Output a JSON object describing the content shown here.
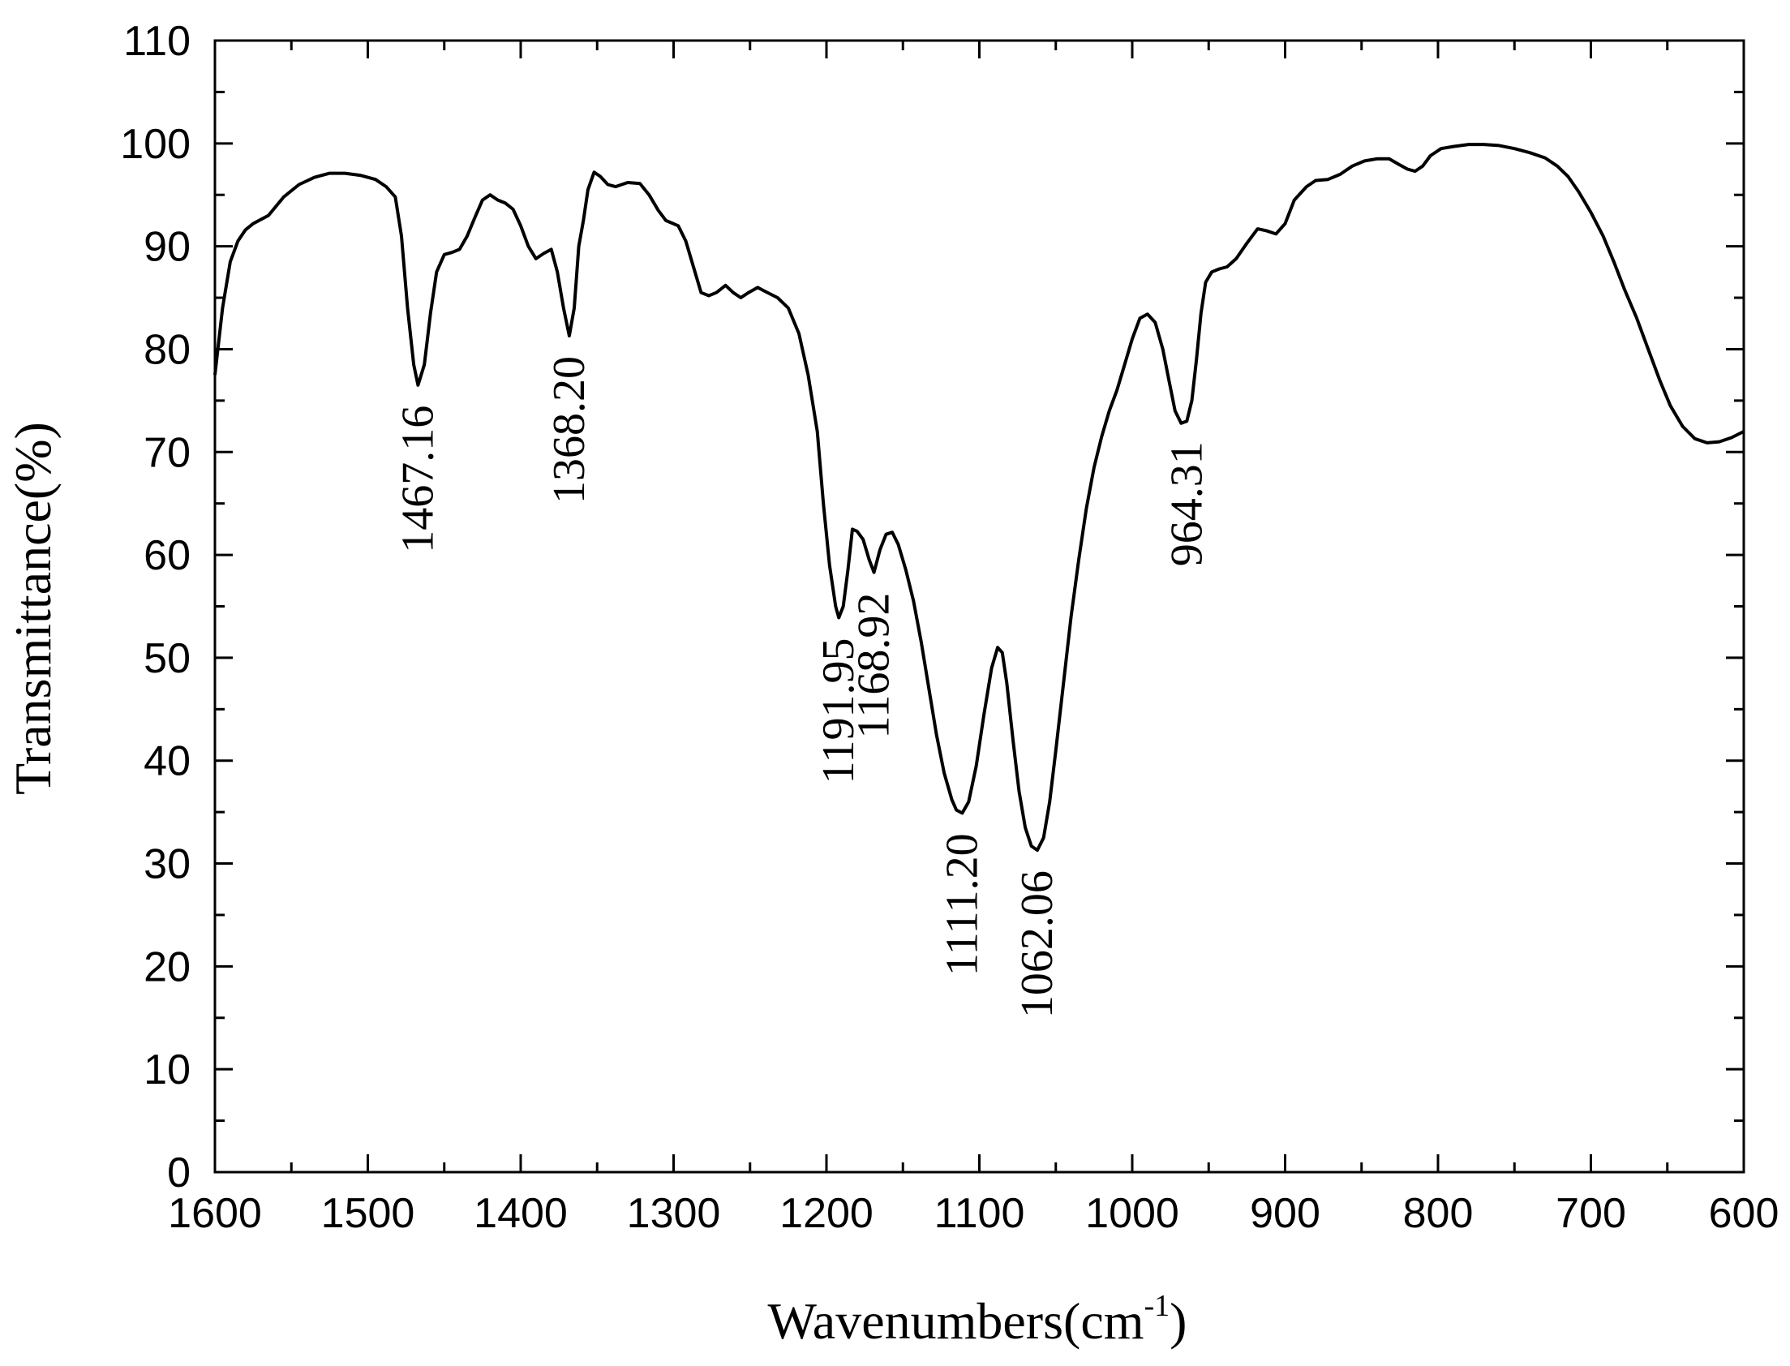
{
  "chart_data": {
    "type": "line",
    "xlabel": "Wavenumbers(cm",
    "xlabel_superscript": "-1",
    "xlabel_suffix": ")",
    "ylabel": "Transmittance(%)",
    "xlim": [
      1600,
      600
    ],
    "ylim": [
      0,
      110
    ],
    "x_reversed": true,
    "x_ticks": [
      1600,
      1500,
      1400,
      1300,
      1200,
      1100,
      1000,
      900,
      800,
      700,
      600
    ],
    "y_ticks": [
      0,
      10,
      20,
      30,
      40,
      50,
      60,
      70,
      80,
      90,
      100,
      110
    ],
    "grid": false,
    "series": [
      {
        "points": [
          [
            1600,
            77.5
          ],
          [
            1595,
            84
          ],
          [
            1590,
            88.5
          ],
          [
            1585,
            90.5
          ],
          [
            1580,
            91.6
          ],
          [
            1575,
            92.2
          ],
          [
            1565,
            93
          ],
          [
            1555,
            94.8
          ],
          [
            1545,
            96
          ],
          [
            1535,
            96.7
          ],
          [
            1525,
            97.1
          ],
          [
            1515,
            97.1
          ],
          [
            1505,
            96.9
          ],
          [
            1495,
            96.5
          ],
          [
            1488,
            95.8
          ],
          [
            1482,
            94.8
          ],
          [
            1478,
            91
          ],
          [
            1474,
            84
          ],
          [
            1470,
            78.5
          ],
          [
            1467.16,
            76.5
          ],
          [
            1463,
            78.5
          ],
          [
            1459,
            83.5
          ],
          [
            1455,
            87.5
          ],
          [
            1450,
            89.2
          ],
          [
            1445,
            89.4
          ],
          [
            1440,
            89.7
          ],
          [
            1435,
            91
          ],
          [
            1430,
            92.8
          ],
          [
            1425,
            94.5
          ],
          [
            1420,
            95
          ],
          [
            1415,
            94.5
          ],
          [
            1410,
            94.2
          ],
          [
            1405,
            93.6
          ],
          [
            1400,
            92
          ],
          [
            1395,
            90
          ],
          [
            1390,
            88.8
          ],
          [
            1385,
            89.3
          ],
          [
            1380,
            89.7
          ],
          [
            1376,
            87.5
          ],
          [
            1372,
            84
          ],
          [
            1368.2,
            81.3
          ],
          [
            1365,
            84
          ],
          [
            1362,
            90
          ],
          [
            1359,
            92.5
          ],
          [
            1356,
            95.5
          ],
          [
            1352,
            97.2
          ],
          [
            1348,
            96.8
          ],
          [
            1343,
            96
          ],
          [
            1338,
            95.8
          ],
          [
            1330,
            96.2
          ],
          [
            1322,
            96.1
          ],
          [
            1316,
            95
          ],
          [
            1310,
            93.5
          ],
          [
            1305,
            92.5
          ],
          [
            1297,
            92
          ],
          [
            1292,
            90.5
          ],
          [
            1287,
            88
          ],
          [
            1282,
            85.5
          ],
          [
            1277,
            85.2
          ],
          [
            1272,
            85.5
          ],
          [
            1266,
            86.2
          ],
          [
            1261,
            85.5
          ],
          [
            1256,
            85
          ],
          [
            1251,
            85.5
          ],
          [
            1245,
            86
          ],
          [
            1240,
            85.6
          ],
          [
            1232,
            85
          ],
          [
            1225,
            84
          ],
          [
            1218,
            81.5
          ],
          [
            1212,
            77.5
          ],
          [
            1206,
            72
          ],
          [
            1202,
            65
          ],
          [
            1198,
            59
          ],
          [
            1194,
            55
          ],
          [
            1191.95,
            53.9
          ],
          [
            1189,
            55
          ],
          [
            1186,
            58.5
          ],
          [
            1183,
            62.5
          ],
          [
            1180,
            62.3
          ],
          [
            1176,
            61.5
          ],
          [
            1172,
            59.5
          ],
          [
            1168.92,
            58.3
          ],
          [
            1165,
            60.5
          ],
          [
            1161,
            62
          ],
          [
            1157,
            62.2
          ],
          [
            1153,
            61
          ],
          [
            1148,
            58.5
          ],
          [
            1143,
            55.5
          ],
          [
            1138,
            51.5
          ],
          [
            1133,
            47
          ],
          [
            1128,
            42.5
          ],
          [
            1123,
            38.8
          ],
          [
            1118,
            36.2
          ],
          [
            1115,
            35.2
          ],
          [
            1111.2,
            34.9
          ],
          [
            1107,
            36
          ],
          [
            1102,
            39.5
          ],
          [
            1097,
            44.5
          ],
          [
            1092,
            49
          ],
          [
            1088,
            51
          ],
          [
            1085,
            50.5
          ],
          [
            1082,
            47.5
          ],
          [
            1078,
            42
          ],
          [
            1074,
            37
          ],
          [
            1070,
            33.5
          ],
          [
            1066,
            31.7
          ],
          [
            1062.06,
            31.3
          ],
          [
            1058,
            32.5
          ],
          [
            1054,
            36
          ],
          [
            1050,
            41
          ],
          [
            1045,
            47.5
          ],
          [
            1040,
            54
          ],
          [
            1035,
            59.5
          ],
          [
            1030,
            64.5
          ],
          [
            1025,
            68.5
          ],
          [
            1020,
            71.5
          ],
          [
            1015,
            74
          ],
          [
            1010,
            76
          ],
          [
            1005,
            78.5
          ],
          [
            1000,
            81
          ],
          [
            995,
            83
          ],
          [
            990,
            83.4
          ],
          [
            985,
            82.6
          ],
          [
            980,
            80
          ],
          [
            976,
            77
          ],
          [
            972,
            74
          ],
          [
            968,
            72.8
          ],
          [
            964.31,
            73
          ],
          [
            961,
            75
          ],
          [
            958,
            79
          ],
          [
            955,
            83.5
          ],
          [
            952,
            86.5
          ],
          [
            948,
            87.5
          ],
          [
            943,
            87.8
          ],
          [
            938,
            88
          ],
          [
            932,
            88.8
          ],
          [
            925,
            90.3
          ],
          [
            918,
            91.7
          ],
          [
            912,
            91.5
          ],
          [
            906,
            91.2
          ],
          [
            900,
            92.2
          ],
          [
            894,
            94.5
          ],
          [
            886,
            95.8
          ],
          [
            880,
            96.4
          ],
          [
            872,
            96.5
          ],
          [
            864,
            97
          ],
          [
            856,
            97.8
          ],
          [
            848,
            98.3
          ],
          [
            840,
            98.5
          ],
          [
            832,
            98.5
          ],
          [
            826,
            98
          ],
          [
            820,
            97.5
          ],
          [
            815,
            97.3
          ],
          [
            810,
            97.8
          ],
          [
            805,
            98.8
          ],
          [
            798,
            99.5
          ],
          [
            790,
            99.7
          ],
          [
            780,
            99.9
          ],
          [
            770,
            99.9
          ],
          [
            760,
            99.8
          ],
          [
            750,
            99.5
          ],
          [
            740,
            99.1
          ],
          [
            730,
            98.6
          ],
          [
            722,
            97.8
          ],
          [
            715,
            96.8
          ],
          [
            708,
            95.3
          ],
          [
            700,
            93.3
          ],
          [
            692,
            91
          ],
          [
            685,
            88.5
          ],
          [
            678,
            85.8
          ],
          [
            670,
            83
          ],
          [
            662,
            79.8
          ],
          [
            655,
            77
          ],
          [
            648,
            74.5
          ],
          [
            640,
            72.5
          ],
          [
            632,
            71.3
          ],
          [
            624,
            70.9
          ],
          [
            616,
            71
          ],
          [
            608,
            71.4
          ],
          [
            600,
            72
          ]
        ]
      }
    ],
    "annotations": [
      {
        "text": "1467.16",
        "x": 1467.16,
        "y": 76.5
      },
      {
        "text": "1368.20",
        "x": 1368.2,
        "y": 81.3
      },
      {
        "text": "1191.95",
        "x": 1191.95,
        "y": 53.9
      },
      {
        "text": "1168.92",
        "x": 1168.92,
        "y": 58.3
      },
      {
        "text": "1111.20",
        "x": 1111.2,
        "y": 34.9
      },
      {
        "text": "1062.06",
        "x": 1062.06,
        "y": 31.3
      },
      {
        "text": "964.31",
        "x": 964.31,
        "y": 73
      }
    ]
  }
}
